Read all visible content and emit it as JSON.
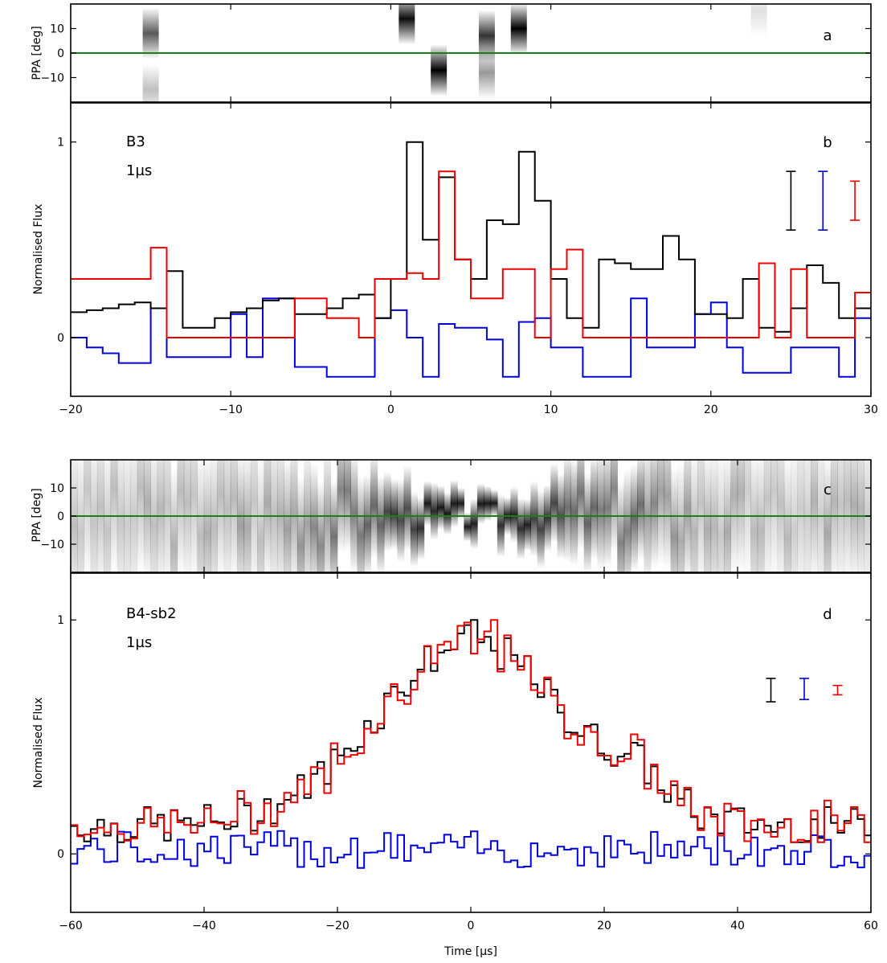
{
  "colors": {
    "total": "#000000",
    "circular": "#0000dd",
    "linear": "#ee0000",
    "ppa_line": "#1a7f1a",
    "ppa_ink": "#000000"
  },
  "chart_data": [
    {
      "type": "heatmap",
      "panel_label": "a",
      "ylabel": "PPA [deg]",
      "xlim": [
        -20,
        30
      ],
      "ylim": [
        -20,
        20
      ],
      "yticks": [
        10,
        0,
        -10
      ],
      "zero_line": 0,
      "blobs": [
        {
          "t": -15.5,
          "ppa": 8,
          "strength": 0.65
        },
        {
          "t": -15.5,
          "ppa": -15,
          "strength": 0.25
        },
        {
          "t": 0.5,
          "ppa": 14,
          "strength": 0.95
        },
        {
          "t": 2.5,
          "ppa": -7,
          "strength": 1.0
        },
        {
          "t": 5.5,
          "ppa": 7,
          "strength": 0.8
        },
        {
          "t": 5.5,
          "ppa": -8,
          "strength": 0.4
        },
        {
          "t": 7.5,
          "ppa": 10,
          "strength": 1.0
        },
        {
          "t": 22.5,
          "ppa": 17,
          "strength": 0.12
        }
      ]
    },
    {
      "type": "line",
      "panel_label": "b",
      "ylabel": "Normalised Flux",
      "annotation": [
        "B3",
        "1µs"
      ],
      "xlim": [
        -20,
        30
      ],
      "ylim": [
        -0.3,
        1.2
      ],
      "xticks": [
        -20,
        -10,
        0,
        10,
        20,
        30
      ],
      "yticks": [
        0,
        1
      ],
      "step_width": 1,
      "x": [
        -20,
        -19,
        -18,
        -17,
        -16,
        -15,
        -14,
        -13,
        -12,
        -11,
        -10,
        -9,
        -8,
        -7,
        -6,
        -5,
        -4,
        -3,
        -2,
        -1,
        0,
        1,
        2,
        3,
        4,
        5,
        6,
        7,
        8,
        9,
        10,
        11,
        12,
        13,
        14,
        15,
        16,
        17,
        18,
        19,
        20,
        21,
        22,
        23,
        24,
        25,
        26,
        27,
        28,
        29
      ],
      "series": [
        {
          "key": "total",
          "values": [
            0.13,
            0.14,
            0.15,
            0.17,
            0.18,
            0.15,
            0.34,
            0.05,
            0.05,
            0.1,
            0.13,
            0.15,
            0.19,
            0.2,
            0.12,
            0.12,
            0.15,
            0.2,
            0.22,
            0.1,
            0.3,
            1.0,
            0.5,
            0.82,
            0.4,
            0.3,
            0.6,
            0.58,
            0.95,
            0.7,
            0.3,
            0.1,
            0.05,
            0.4,
            0.38,
            0.35,
            0.35,
            0.52,
            0.4,
            0.12,
            0.12,
            0.1,
            0.3,
            0.05,
            0.03,
            0.15,
            0.37,
            0.28,
            0.1,
            0.15
          ]
        },
        {
          "key": "circular",
          "values": [
            0.0,
            -0.05,
            -0.08,
            -0.13,
            -0.13,
            0.15,
            -0.1,
            -0.1,
            -0.1,
            -0.1,
            0.12,
            -0.1,
            0.2,
            0.2,
            -0.15,
            -0.15,
            -0.2,
            -0.2,
            -0.2,
            0.1,
            0.14,
            0.0,
            -0.2,
            0.07,
            0.05,
            0.05,
            -0.01,
            -0.2,
            0.08,
            0.1,
            -0.05,
            -0.05,
            -0.2,
            -0.2,
            -0.2,
            0.2,
            -0.05,
            -0.05,
            -0.05,
            0.12,
            0.18,
            -0.05,
            -0.18,
            -0.18,
            -0.18,
            -0.05,
            -0.05,
            -0.05,
            -0.2,
            0.1
          ]
        },
        {
          "key": "linear",
          "values": [
            0.3,
            0.3,
            0.3,
            0.3,
            0.3,
            0.46,
            0.0,
            0.0,
            0.0,
            0.0,
            0.0,
            0.0,
            0.0,
            0.0,
            0.2,
            0.2,
            0.1,
            0.1,
            0.0,
            0.3,
            0.3,
            0.33,
            0.3,
            0.85,
            0.4,
            0.2,
            0.2,
            0.35,
            0.35,
            0.0,
            0.35,
            0.45,
            0.0,
            0.0,
            0.0,
            0.0,
            0.0,
            0.0,
            0.0,
            0.0,
            0.0,
            0.0,
            0.0,
            0.38,
            0.0,
            0.35,
            0.0,
            0.0,
            0.0,
            0.23
          ]
        }
      ],
      "error_bars": [
        {
          "key": "total",
          "x": 25,
          "low": 0.55,
          "high": 0.85
        },
        {
          "key": "circular",
          "x": 27,
          "low": 0.55,
          "high": 0.85
        },
        {
          "key": "linear",
          "x": 29,
          "low": 0.6,
          "high": 0.8
        }
      ]
    },
    {
      "type": "heatmap",
      "panel_label": "c",
      "ylabel": "PPA [deg]",
      "xlim": [
        -60,
        60
      ],
      "ylim": [
        -20,
        20
      ],
      "yticks": [
        10,
        0,
        -10
      ],
      "zero_line": 0
    },
    {
      "type": "line",
      "panel_label": "d",
      "ylabel": "Normalised Flux",
      "xlabel": "Time [µs]",
      "annotation": [
        "B4-sb2",
        "1µs"
      ],
      "xlim": [
        -60,
        60
      ],
      "ylim": [
        -0.25,
        1.2
      ],
      "xticks": [
        -60,
        -40,
        -20,
        0,
        20,
        40,
        60
      ],
      "yticks": [
        0,
        1
      ],
      "error_bars": [
        {
          "key": "total",
          "x": 45,
          "low": 0.65,
          "high": 0.75
        },
        {
          "key": "circular",
          "x": 50,
          "low": 0.66,
          "high": 0.75
        },
        {
          "key": "linear",
          "x": 55,
          "low": 0.68,
          "high": 0.72
        }
      ]
    }
  ]
}
